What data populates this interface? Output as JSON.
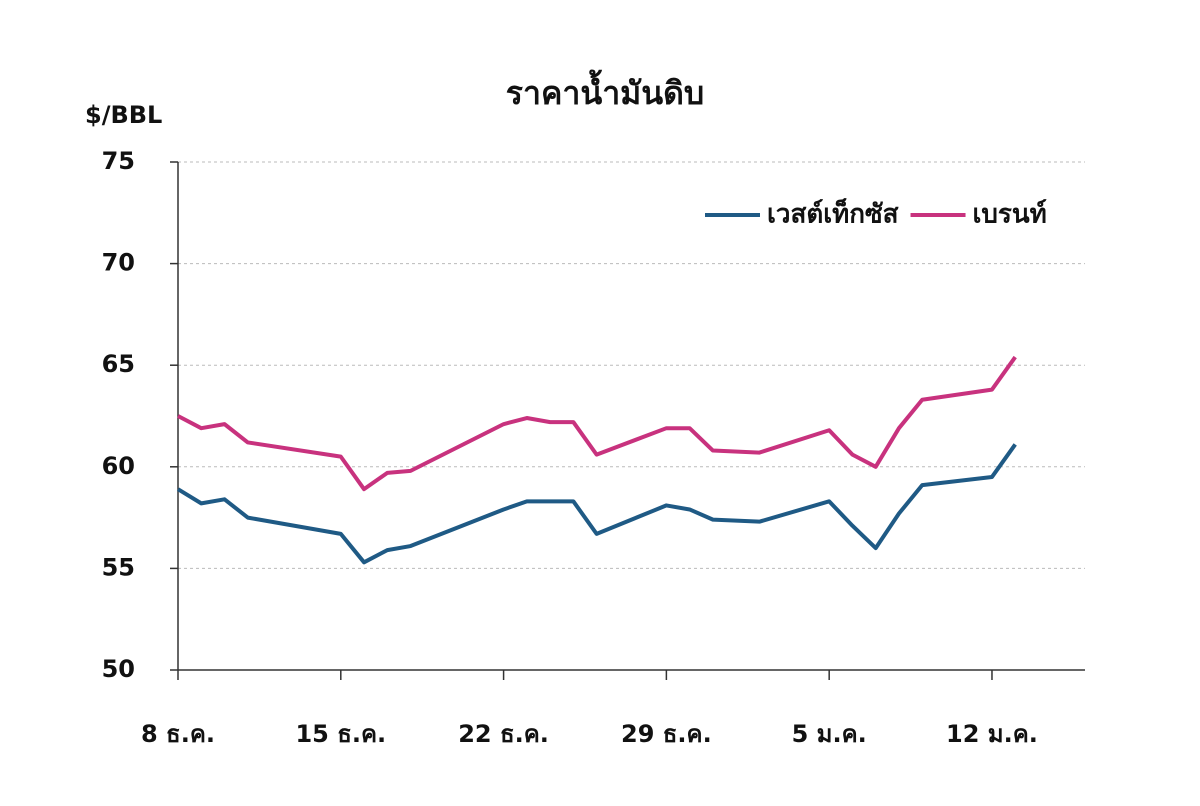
{
  "chart_data": {
    "type": "line",
    "title": "ราคาน้ำมันดิบ",
    "y_label": "$/BBL",
    "x": [
      0,
      1,
      2,
      3,
      7,
      8,
      9,
      10,
      14,
      15,
      16,
      17,
      18,
      21,
      22,
      23,
      25,
      28,
      29,
      30,
      31,
      32,
      35,
      36
    ],
    "xlim": [
      0,
      39
    ],
    "xticks": [
      {
        "value": 0,
        "label": "8 ธ.ค."
      },
      {
        "value": 7,
        "label": "15 ธ.ค."
      },
      {
        "value": 14,
        "label": "22 ธ.ค."
      },
      {
        "value": 21,
        "label": "29 ธ.ค."
      },
      {
        "value": 28,
        "label": "5 ม.ค."
      },
      {
        "value": 35,
        "label": "12 ม.ค."
      }
    ],
    "ylim": [
      50,
      75
    ],
    "yticks": [
      50,
      55,
      60,
      65,
      70,
      75
    ],
    "grid": true,
    "legend": "upper right",
    "series": [
      {
        "name": "เวสต์เท็กซัส",
        "color": "#1f5a85",
        "values": [
          58.9,
          58.2,
          58.4,
          57.5,
          56.7,
          55.3,
          55.9,
          56.1,
          57.9,
          58.3,
          58.3,
          58.3,
          56.7,
          58.1,
          57.9,
          57.4,
          57.3,
          58.3,
          57.1,
          56.0,
          57.7,
          59.1,
          59.5,
          61.1
        ]
      },
      {
        "name": "เบรนท์",
        "color": "#c8327e",
        "values": [
          62.5,
          61.9,
          62.1,
          61.2,
          60.5,
          58.9,
          59.7,
          59.8,
          62.1,
          62.4,
          62.2,
          62.2,
          60.6,
          61.9,
          61.9,
          60.8,
          60.7,
          61.8,
          60.6,
          60.0,
          61.9,
          63.3,
          63.8,
          65.4
        ]
      }
    ]
  }
}
